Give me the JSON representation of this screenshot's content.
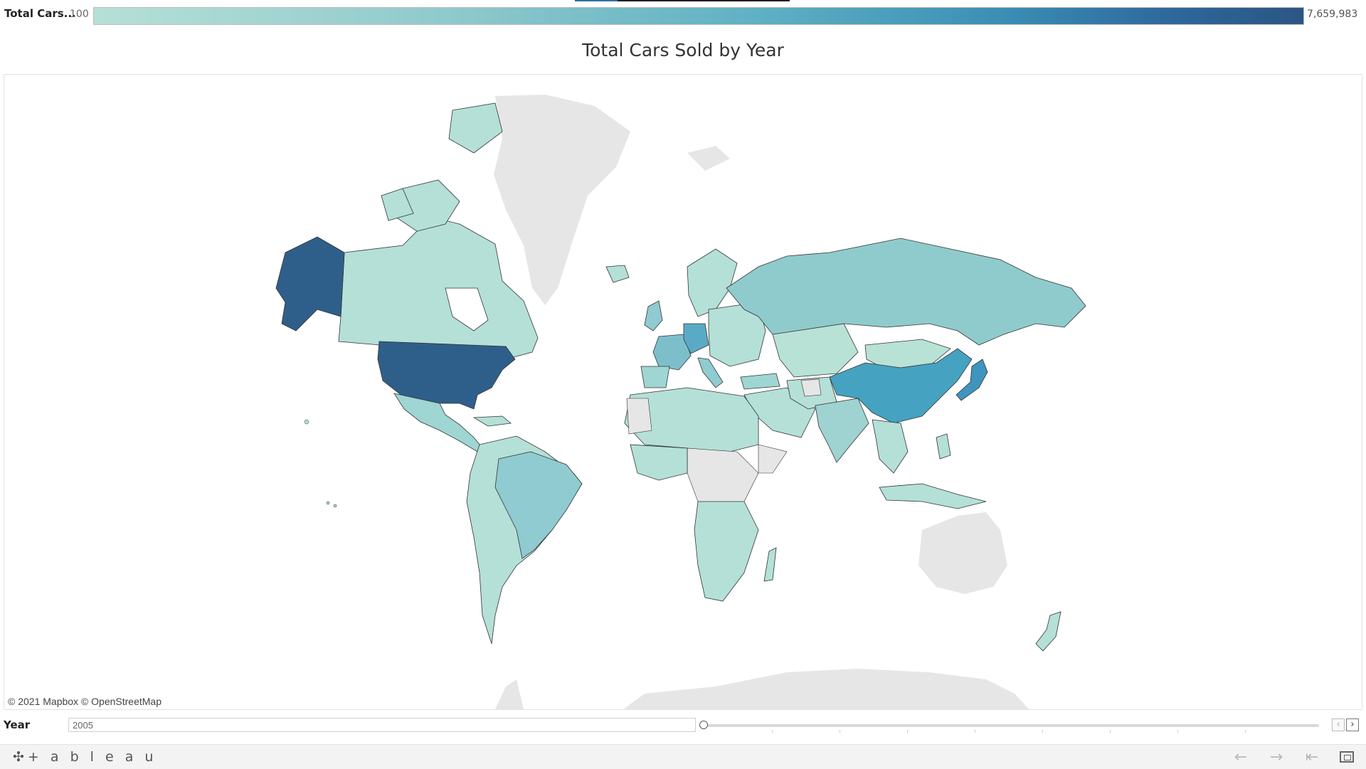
{
  "legend": {
    "title": "Total Cars...",
    "min_label": "100",
    "max_label": "7,659,983",
    "color_low": "#b6e0d6",
    "color_high": "#2b5683"
  },
  "chart": {
    "title": "Total Cars Sold by Year"
  },
  "map": {
    "attribution": "© 2021 Mapbox  © OpenStreetMap",
    "no_data_color": "#e6e6e6",
    "regions": [
      {
        "name": "United States",
        "color": "#2e5f8a"
      },
      {
        "name": "Alaska (United States)",
        "color": "#2e5f8a"
      },
      {
        "name": "Canada",
        "color": "#b4e0d8"
      },
      {
        "name": "Mexico",
        "color": "#9fd5d2"
      },
      {
        "name": "Brazil",
        "color": "#8fcbd0"
      },
      {
        "name": "Russia",
        "color": "#8fcbcd"
      },
      {
        "name": "China",
        "color": "#45a2c0"
      },
      {
        "name": "Japan",
        "color": "#3f95be"
      },
      {
        "name": "Germany",
        "color": "#5aaac6"
      },
      {
        "name": "France",
        "color": "#7cbfcb"
      },
      {
        "name": "India",
        "color": "#9ed3d1"
      },
      {
        "name": "Mongolia",
        "color": "#b8e2d6"
      },
      {
        "name": "Australia",
        "color": "#e6e6e6"
      },
      {
        "name": "Greenland",
        "color": "#e6e6e6"
      }
    ]
  },
  "filter": {
    "label": "Year",
    "value": "2005",
    "prev_icon": "chevron-left-icon",
    "next_icon": "chevron-right-icon"
  },
  "footer": {
    "logo_text": "+ a b l e a u",
    "buttons": [
      "undo-icon",
      "redo-icon",
      "revert-icon",
      "fullscreen-icon"
    ]
  }
}
